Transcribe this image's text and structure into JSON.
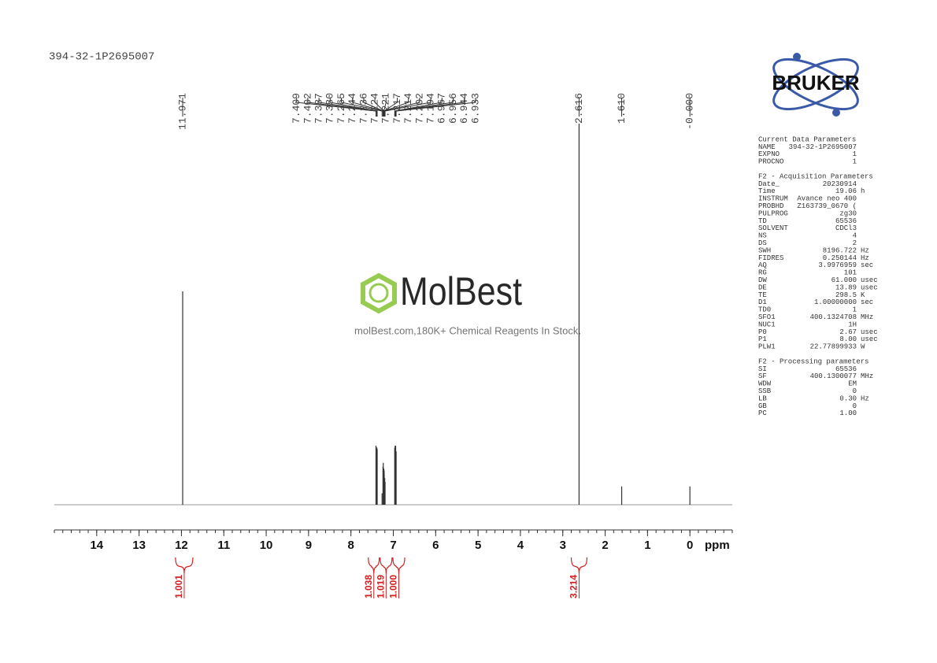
{
  "sample_name": "394-32-1P2695007",
  "logo": "BRUKER",
  "watermark": {
    "brand": "MolBest",
    "tagline": "molBest.com,180K+ Chemical Reagents In Stock."
  },
  "chart_data": {
    "type": "nmr",
    "x_unit": "ppm",
    "xlim": [
      15,
      -1
    ],
    "xticks": [
      14,
      13,
      12,
      11,
      10,
      9,
      8,
      7,
      6,
      5,
      4,
      3,
      2,
      1,
      0
    ],
    "minor_tick_step": 0.2,
    "ylim": [
      0,
      100
    ],
    "peak_shifts": [
      11.971,
      7.409,
      7.402,
      7.387,
      {
        "value": 7.38,
        "label": "7.380"
      },
      7.265,
      7.244,
      7.236,
      7.224,
      7.221,
      7.217,
      7.214,
      7.202,
      7.194,
      6.967,
      6.956,
      6.944,
      6.933,
      2.616,
      {
        "value": 1.61,
        "label": "1.610"
      },
      {
        "value": 0,
        "label": "-0.000"
      }
    ],
    "peak_heights": [
      56,
      15.5,
      15,
      15,
      14.5,
      3,
      10,
      11,
      9.5,
      9,
      9,
      8,
      7,
      6,
      15,
      15.5,
      15.5,
      14,
      100,
      4.8,
      4.8
    ],
    "color": "#333333",
    "integral_ranges": [
      [
        12.14,
        11.73
      ],
      [
        7.59,
        7.33
      ],
      [
        7.31,
        7.03
      ],
      [
        7.01,
        6.73
      ],
      [
        2.8,
        2.43
      ]
    ],
    "integral_values": [
      1.001,
      1.038,
      1.019,
      {
        "value": 1,
        "label": "1.000"
      },
      3.214
    ],
    "integral_color": "#d42020"
  },
  "parameters": [
    {
      "heading": "Current Data Parameters",
      "rows": [
        [
          "NAME",
          "394-32-1P2695007"
        ],
        [
          "EXPNO",
          "1"
        ],
        [
          "PROCNO",
          "1"
        ]
      ]
    },
    {
      "heading": "F2 - Acquisition Parameters",
      "rows": [
        [
          "Date_",
          "20230914"
        ],
        [
          "Time",
          "19.06",
          "h"
        ],
        [
          "INSTRUM",
          "Avance neo 400"
        ],
        [
          "PROBHD",
          "Z163739_0670 ("
        ],
        [
          "PULPROG",
          "zg30"
        ],
        [
          "TD",
          "65536"
        ],
        [
          "SOLVENT",
          "CDCl3"
        ],
        [
          "NS",
          "4"
        ],
        [
          "DS",
          "2"
        ],
        [
          "SWH",
          "8196.722",
          "Hz"
        ],
        [
          "FIDRES",
          "0.250144",
          "Hz"
        ],
        [
          "AQ",
          "3.9976959",
          "sec"
        ],
        [
          "RG",
          "101"
        ],
        [
          "DW",
          "61.000",
          "usec"
        ],
        [
          "DE",
          "13.89",
          "usec"
        ],
        [
          "TE",
          "298.5",
          "K"
        ],
        [
          "D1",
          "1.00000000",
          "sec"
        ],
        [
          "TD0",
          "1"
        ],
        [
          "SFO1",
          "400.1324708",
          "MHz"
        ],
        [
          "NUC1",
          "1H"
        ],
        [
          "P0",
          "2.67",
          "usec"
        ],
        [
          "P1",
          "8.00",
          "usec"
        ],
        [
          "PLW1",
          "22.77899933",
          "W"
        ]
      ]
    },
    {
      "heading": "F2 - Processing parameters",
      "rows": [
        [
          "SI",
          "65536"
        ],
        [
          "SF",
          "400.1300077",
          "MHz"
        ],
        [
          "WDW",
          "EM"
        ],
        [
          "SSB",
          "0"
        ],
        [
          "LB",
          "0.30",
          "Hz"
        ],
        [
          "GB",
          "0"
        ],
        [
          "PC",
          "1.00"
        ]
      ]
    }
  ]
}
